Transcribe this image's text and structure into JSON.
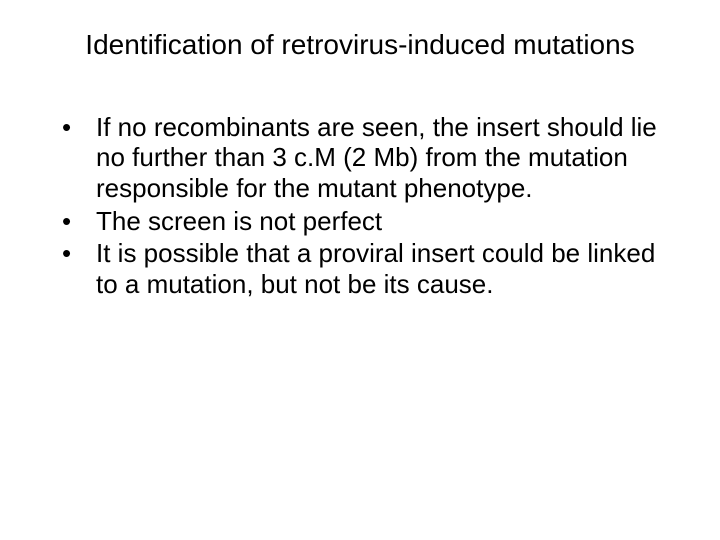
{
  "slide": {
    "title": "Identification of retrovirus-induced mutations",
    "bullets": [
      "If no recombinants are seen, the insert should lie no further than 3 c.M (2 Mb) from the mutation responsible for the mutant phenotype.",
      "The screen is not perfect",
      "It is possible that a proviral insert could be linked to a mutation, but not be its cause."
    ]
  },
  "style": {
    "background_color": "#ffffff",
    "text_color": "#000000",
    "title_fontsize": 28,
    "body_fontsize": 26,
    "font_family": "Arial"
  }
}
